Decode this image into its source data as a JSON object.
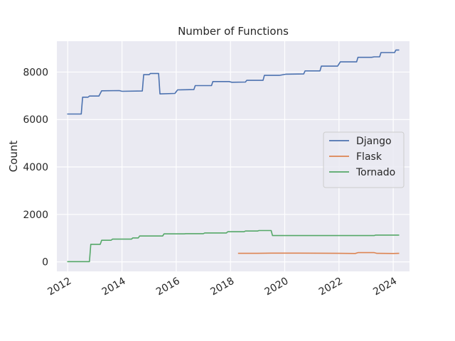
{
  "chart_data": {
    "type": "line",
    "title": "Number of Functions",
    "xlabel": "",
    "ylabel": "Count",
    "xlim": [
      2011.6,
      2024.6
    ],
    "ylim": [
      -400,
      9300
    ],
    "x_ticks": [
      2012,
      2014,
      2016,
      2018,
      2020,
      2022,
      2024
    ],
    "x_tick_labels": [
      "2012",
      "2014",
      "2016",
      "2018",
      "2020",
      "2022",
      "2024"
    ],
    "y_ticks": [
      0,
      2000,
      4000,
      6000,
      8000
    ],
    "y_tick_labels": [
      "0",
      "2000",
      "4000",
      "6000",
      "8000"
    ],
    "grid": true,
    "legend_position": "center-right",
    "series": [
      {
        "name": "Django",
        "color": "#4c72b0",
        "x": [
          2012.0,
          2012.5,
          2012.55,
          2012.75,
          2012.8,
          2013.15,
          2013.25,
          2013.9,
          2014.0,
          2014.75,
          2014.8,
          2015.0,
          2015.05,
          2015.35,
          2015.4,
          2015.95,
          2016.05,
          2016.65,
          2016.7,
          2017.3,
          2017.35,
          2017.95,
          2018.05,
          2018.55,
          2018.6,
          2019.2,
          2019.25,
          2019.8,
          2020.05,
          2020.7,
          2020.75,
          2021.3,
          2021.35,
          2021.95,
          2022.05,
          2022.65,
          2022.7,
          2023.2,
          2023.3,
          2023.5,
          2023.55,
          2024.05,
          2024.1,
          2024.2
        ],
        "values": [
          6230,
          6230,
          6940,
          6940,
          6990,
          6990,
          7210,
          7220,
          7190,
          7200,
          7890,
          7890,
          7940,
          7940,
          7080,
          7100,
          7250,
          7260,
          7430,
          7430,
          7600,
          7600,
          7570,
          7580,
          7650,
          7650,
          7860,
          7860,
          7910,
          7920,
          8050,
          8050,
          8250,
          8250,
          8430,
          8430,
          8620,
          8620,
          8640,
          8640,
          8820,
          8820,
          8930,
          8930
        ]
      },
      {
        "name": "Flask",
        "color": "#dd8452",
        "x": [
          2018.3,
          2019.0,
          2019.55,
          2020.5,
          2021.3,
          2022.0,
          2022.6,
          2022.7,
          2023.3,
          2023.4,
          2024.0,
          2024.2
        ],
        "values": [
          360,
          360,
          370,
          370,
          365,
          360,
          355,
          390,
          390,
          360,
          355,
          360
        ]
      },
      {
        "name": "Tornado",
        "color": "#55a868",
        "x": [
          2012.0,
          2012.8,
          2012.85,
          2013.2,
          2013.25,
          2013.6,
          2013.65,
          2014.35,
          2014.4,
          2014.6,
          2014.65,
          2015.5,
          2015.55,
          2016.3,
          2016.35,
          2017.0,
          2017.05,
          2017.85,
          2017.9,
          2018.5,
          2018.55,
          2019.0,
          2019.05,
          2019.5,
          2019.55,
          2020.5,
          2021.5,
          2022.5,
          2023.3,
          2023.35,
          2024.2
        ],
        "values": [
          10,
          10,
          740,
          740,
          910,
          910,
          960,
          960,
          1010,
          1010,
          1090,
          1090,
          1180,
          1180,
          1190,
          1190,
          1220,
          1220,
          1270,
          1270,
          1300,
          1300,
          1320,
          1320,
          1110,
          1110,
          1110,
          1110,
          1110,
          1130,
          1130
        ]
      }
    ]
  }
}
